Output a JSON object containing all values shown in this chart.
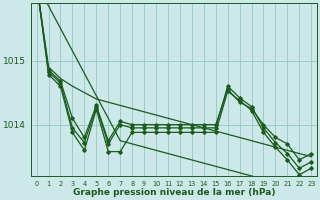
{
  "background_color": "#cce8e8",
  "grid_color": "#99cccc",
  "line_color": "#1a5c1a",
  "x_ticks": [
    0,
    1,
    2,
    3,
    4,
    5,
    6,
    7,
    8,
    9,
    10,
    11,
    12,
    13,
    14,
    15,
    16,
    17,
    18,
    19,
    20,
    21,
    22,
    23
  ],
  "y_ticks": [
    1014,
    1015
  ],
  "ylim": [
    1013.2,
    1015.9
  ],
  "xlabel": "Graphe pression niveau de la mer (hPa)",
  "series": [
    {
      "data": [
        1016.2,
        1015.85,
        1015.5,
        1015.15,
        1014.8,
        1014.45,
        1014.1,
        1013.75,
        1013.7,
        1013.65,
        1013.6,
        1013.55,
        1013.5,
        1013.45,
        1013.4,
        1013.35,
        1013.3,
        1013.25,
        1013.2,
        1013.15,
        1013.1,
        1013.05,
        1013.0,
        1012.95
      ],
      "markers": false,
      "linewidth": 0.9
    },
    {
      "data": [
        1016.2,
        1014.9,
        1014.72,
        1014.6,
        1014.5,
        1014.4,
        1014.35,
        1014.3,
        1014.25,
        1014.2,
        1014.15,
        1014.1,
        1014.05,
        1014.0,
        1013.95,
        1013.9,
        1013.85,
        1013.8,
        1013.75,
        1013.7,
        1013.65,
        1013.6,
        1013.55,
        1013.5
      ],
      "markers": false,
      "linewidth": 0.9
    },
    {
      "data": [
        1016.2,
        1014.85,
        1014.68,
        1014.1,
        1013.8,
        1014.3,
        1013.75,
        1014.05,
        1014.0,
        1014.0,
        1014.0,
        1014.0,
        1014.0,
        1014.0,
        1014.0,
        1014.0,
        1014.55,
        1014.35,
        1014.25,
        1014.0,
        1013.8,
        1013.7,
        1013.45,
        1013.55
      ],
      "markers": true,
      "linewidth": 0.9
    },
    {
      "data": [
        1016.2,
        1014.82,
        1014.65,
        1013.95,
        1013.72,
        1014.28,
        1013.7,
        1014.0,
        1013.95,
        1013.95,
        1013.95,
        1013.95,
        1013.95,
        1013.95,
        1013.95,
        1013.95,
        1014.6,
        1014.42,
        1014.28,
        1013.95,
        1013.72,
        1013.55,
        1013.32,
        1013.42
      ],
      "markers": true,
      "linewidth": 0.9
    },
    {
      "data": [
        1016.2,
        1014.78,
        1014.6,
        1013.88,
        1013.6,
        1014.24,
        1013.58,
        1013.58,
        1013.88,
        1013.88,
        1013.88,
        1013.88,
        1013.88,
        1013.88,
        1013.88,
        1013.88,
        1014.52,
        1014.38,
        1014.22,
        1013.88,
        1013.65,
        1013.45,
        1013.22,
        1013.32
      ],
      "markers": true,
      "linewidth": 0.9
    }
  ]
}
